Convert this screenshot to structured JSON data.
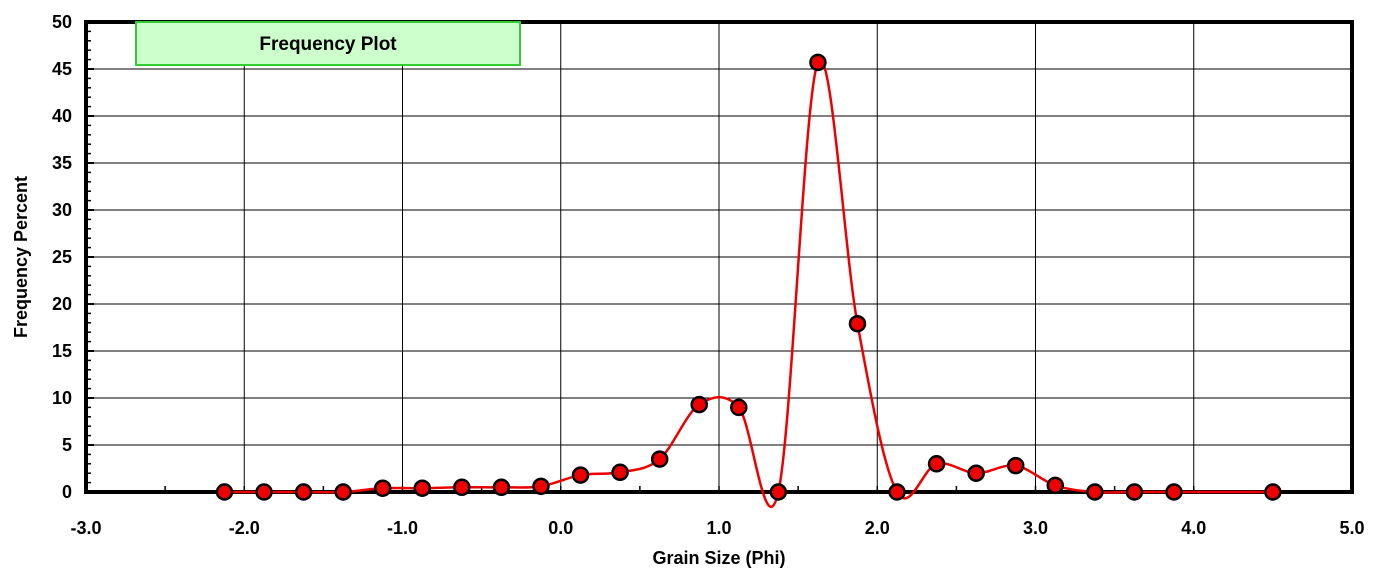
{
  "chart_data": {
    "type": "line",
    "title": "Frequency Plot",
    "xlabel": "Grain Size (Phi)",
    "ylabel": "Frequency Percent",
    "xlim": [
      -3.0,
      5.0
    ],
    "ylim": [
      0,
      50
    ],
    "xticks": [
      -3.0,
      -2.0,
      -1.0,
      0.0,
      1.0,
      2.0,
      3.0,
      4.0,
      5.0
    ],
    "xtick_labels": [
      "-3.0",
      "-2.0",
      "-1.0",
      "0.0",
      "1.0",
      "2.0",
      "3.0",
      "4.0",
      "5.0"
    ],
    "yticks": [
      0,
      5,
      10,
      15,
      20,
      25,
      30,
      35,
      40,
      45,
      50
    ],
    "ytick_labels": [
      "0",
      "5",
      "10",
      "15",
      "20",
      "25",
      "30",
      "35",
      "40",
      "45",
      "50"
    ],
    "grid": true,
    "legend": "none",
    "smoothed_line": true,
    "colors": {
      "line": "#ee0000",
      "marker_fill": "#ee0000",
      "marker_edge": "#000000",
      "title_box_fill": "#ccffcc",
      "title_box_border": "#33cc33",
      "grid": "#000000"
    },
    "series": [
      {
        "x": [
          -2.125,
          -1.875,
          -1.625,
          -1.375,
          -1.125,
          -0.875,
          -0.625,
          -0.375,
          -0.125,
          0.125,
          0.375,
          0.625,
          0.875,
          1.125,
          1.375,
          1.625,
          1.875,
          2.125,
          2.375,
          2.625,
          2.875,
          3.125,
          3.375,
          3.625,
          3.875,
          4.5
        ],
        "y": [
          0.0,
          0.0,
          0.0,
          0.0,
          0.4,
          0.4,
          0.5,
          0.5,
          0.6,
          1.8,
          2.1,
          3.5,
          9.3,
          9.0,
          0.0,
          45.7,
          17.9,
          0.0,
          3.0,
          2.0,
          2.8,
          0.7,
          0.0,
          0.0,
          0.0,
          0.0
        ]
      }
    ]
  }
}
